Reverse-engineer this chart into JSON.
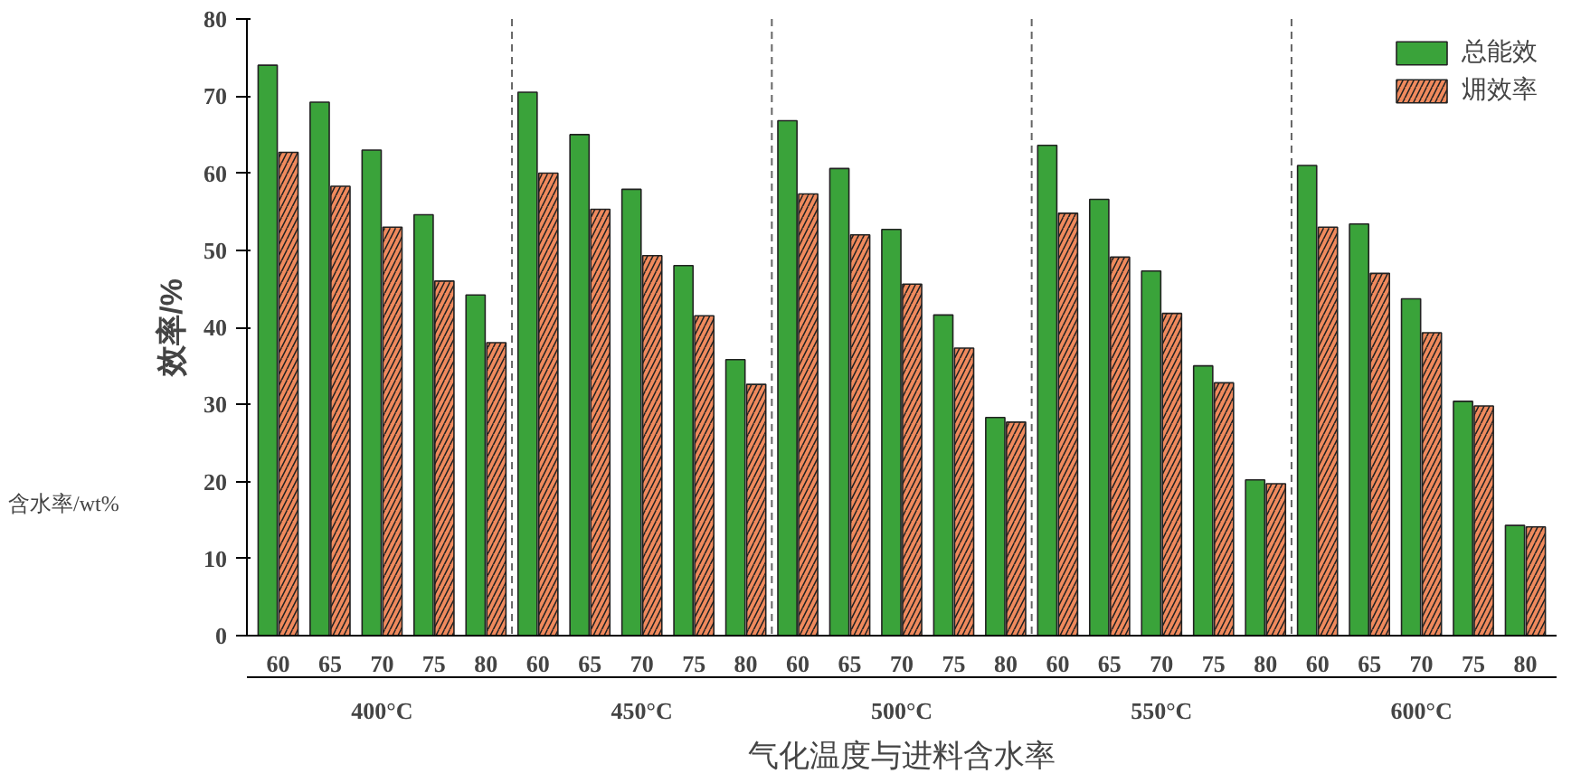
{
  "chart_data": {
    "type": "bar",
    "xlabel": "气化温度与进料含水率",
    "ylabel": "效率/%",
    "categories": [
      "60",
      "65",
      "70",
      "75",
      "80",
      "60",
      "65",
      "70",
      "75",
      "80",
      "60",
      "65",
      "70",
      "75",
      "80",
      "60",
      "65",
      "70",
      "75",
      "80",
      "60",
      "65",
      "70",
      "75",
      "80"
    ],
    "series": [
      {
        "name": "总能效",
        "color": "#3aa33a",
        "values": [
          74,
          69.2,
          63,
          54.6,
          44.2,
          70.5,
          65,
          57.9,
          48,
          35.8,
          66.8,
          60.6,
          52.7,
          41.6,
          28.3,
          63.6,
          56.6,
          47.3,
          35,
          20.2,
          61,
          53.4,
          43.7,
          30.4,
          14.3
        ]
      },
      {
        "name": "㶲效率",
        "color": "#f08a5d",
        "values": [
          62.7,
          58.3,
          53,
          46,
          38,
          60,
          55.3,
          49.3,
          41.5,
          32.6,
          57.3,
          52,
          45.6,
          37.3,
          27.7,
          54.8,
          49.1,
          41.8,
          32.8,
          19.7,
          53,
          47,
          39.3,
          29.8,
          14.1
        ]
      }
    ],
    "annotations": [
      "含水率/wt%",
      "400°C",
      "450°C",
      "500°C",
      "550°C",
      "600°C"
    ],
    "ylim": [
      0,
      80
    ],
    "yticks": [
      0,
      10,
      20,
      30,
      40,
      50,
      60,
      70,
      80
    ],
    "legend": "top right",
    "grid": false
  }
}
